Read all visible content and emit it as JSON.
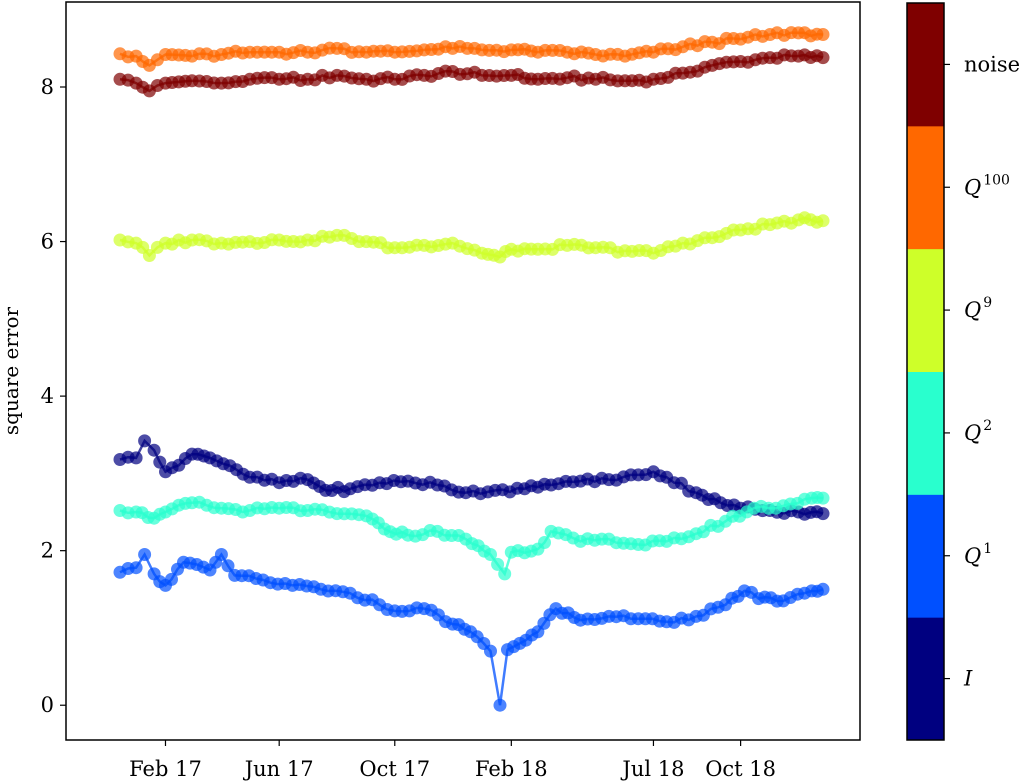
{
  "chart_data": {
    "type": "line",
    "title": "",
    "xlabel": "",
    "ylabel": "square error",
    "ylim": [
      -0.45,
      9.1
    ],
    "xlim": [
      "2016-10-19",
      "2019-02-04"
    ],
    "grid": false,
    "yticks": [
      0,
      2,
      4,
      6,
      8
    ],
    "xticks": [
      {
        "date": "2017-02-01",
        "label": "Feb 17"
      },
      {
        "date": "2017-06-01",
        "label": "Jun 17"
      },
      {
        "date": "2017-10-01",
        "label": "Oct 17"
      },
      {
        "date": "2018-02-01",
        "label": "Feb 18"
      },
      {
        "date": "2018-07-01",
        "label": "Jul 18"
      },
      {
        "date": "2018-10-01",
        "label": "Oct 18"
      }
    ],
    "colorbar": {
      "entries": [
        {
          "label": "I",
          "base": "I",
          "sup": "",
          "color": "#000080"
        },
        {
          "label": "Q^1",
          "base": "Q",
          "sup": "1",
          "color": "#0050ff"
        },
        {
          "label": "Q^2",
          "base": "Q",
          "sup": "2",
          "color": "#29ffce"
        },
        {
          "label": "Q^9",
          "base": "Q",
          "sup": "9",
          "color": "#ceff29"
        },
        {
          "label": "Q^100",
          "base": "Q",
          "sup": "100",
          "color": "#ff6800"
        },
        {
          "label": "noise",
          "base": "noise",
          "sup": "",
          "color": "#7f0000"
        }
      ]
    },
    "series": [
      {
        "key": "noise",
        "color": "#7f0000",
        "points": [
          [
            "2016-12-15",
            8.1
          ],
          [
            "2017-01-01",
            8.05
          ],
          [
            "2017-01-15",
            7.95
          ],
          [
            "2017-02-01",
            8.05
          ],
          [
            "2017-03-01",
            8.08
          ],
          [
            "2017-04-01",
            8.05
          ],
          [
            "2017-05-01",
            8.1
          ],
          [
            "2017-06-01",
            8.1
          ],
          [
            "2017-07-01",
            8.1
          ],
          [
            "2017-08-01",
            8.15
          ],
          [
            "2017-09-01",
            8.1
          ],
          [
            "2017-10-01",
            8.1
          ],
          [
            "2017-11-01",
            8.15
          ],
          [
            "2017-12-01",
            8.2
          ],
          [
            "2018-01-01",
            8.15
          ],
          [
            "2018-02-01",
            8.15
          ],
          [
            "2018-03-01",
            8.1
          ],
          [
            "2018-04-01",
            8.12
          ],
          [
            "2018-05-01",
            8.1
          ],
          [
            "2018-06-01",
            8.08
          ],
          [
            "2018-07-01",
            8.1
          ],
          [
            "2018-08-01",
            8.18
          ],
          [
            "2018-09-01",
            8.28
          ],
          [
            "2018-10-01",
            8.33
          ],
          [
            "2018-11-01",
            8.38
          ],
          [
            "2018-12-01",
            8.4
          ],
          [
            "2018-12-27",
            8.38
          ]
        ]
      },
      {
        "key": "Q^100",
        "color": "#ff6800",
        "points": [
          [
            "2016-12-15",
            8.43
          ],
          [
            "2017-01-01",
            8.4
          ],
          [
            "2017-01-15",
            8.28
          ],
          [
            "2017-02-01",
            8.42
          ],
          [
            "2017-03-01",
            8.4
          ],
          [
            "2017-04-01",
            8.42
          ],
          [
            "2017-05-01",
            8.45
          ],
          [
            "2017-06-01",
            8.45
          ],
          [
            "2017-07-01",
            8.45
          ],
          [
            "2017-08-01",
            8.5
          ],
          [
            "2017-09-01",
            8.45
          ],
          [
            "2017-10-01",
            8.45
          ],
          [
            "2017-11-01",
            8.48
          ],
          [
            "2017-12-01",
            8.5
          ],
          [
            "2018-01-01",
            8.48
          ],
          [
            "2018-02-01",
            8.48
          ],
          [
            "2018-03-01",
            8.45
          ],
          [
            "2018-04-01",
            8.45
          ],
          [
            "2018-05-01",
            8.42
          ],
          [
            "2018-06-01",
            8.4
          ],
          [
            "2018-07-01",
            8.45
          ],
          [
            "2018-08-01",
            8.52
          ],
          [
            "2018-09-01",
            8.58
          ],
          [
            "2018-10-01",
            8.62
          ],
          [
            "2018-11-01",
            8.68
          ],
          [
            "2018-12-01",
            8.7
          ],
          [
            "2018-12-27",
            8.68
          ]
        ]
      },
      {
        "key": "Q^9",
        "color": "#ceff29",
        "points": [
          [
            "2016-12-15",
            6.02
          ],
          [
            "2017-01-01",
            5.98
          ],
          [
            "2017-01-15",
            5.82
          ],
          [
            "2017-02-01",
            5.98
          ],
          [
            "2017-03-01",
            6.02
          ],
          [
            "2017-04-01",
            5.98
          ],
          [
            "2017-05-01",
            6.0
          ],
          [
            "2017-06-01",
            6.02
          ],
          [
            "2017-07-01",
            6.02
          ],
          [
            "2017-08-01",
            6.08
          ],
          [
            "2017-09-01",
            6.0
          ],
          [
            "2017-10-01",
            5.92
          ],
          [
            "2017-11-01",
            5.95
          ],
          [
            "2017-12-01",
            5.98
          ],
          [
            "2018-01-01",
            5.85
          ],
          [
            "2018-01-20",
            5.8
          ],
          [
            "2018-02-01",
            5.9
          ],
          [
            "2018-03-01",
            5.9
          ],
          [
            "2018-04-01",
            5.95
          ],
          [
            "2018-05-01",
            5.92
          ],
          [
            "2018-06-01",
            5.88
          ],
          [
            "2018-07-01",
            5.85
          ],
          [
            "2018-08-01",
            5.98
          ],
          [
            "2018-09-01",
            6.05
          ],
          [
            "2018-10-01",
            6.15
          ],
          [
            "2018-11-01",
            6.22
          ],
          [
            "2018-12-01",
            6.28
          ],
          [
            "2018-12-27",
            6.27
          ]
        ]
      },
      {
        "key": "I",
        "color": "#000080",
        "points": [
          [
            "2016-12-15",
            3.18
          ],
          [
            "2017-01-01",
            3.2
          ],
          [
            "2017-01-10",
            3.42
          ],
          [
            "2017-01-20",
            3.3
          ],
          [
            "2017-02-01",
            3.02
          ],
          [
            "2017-03-01",
            3.25
          ],
          [
            "2017-03-20",
            3.2
          ],
          [
            "2017-04-10",
            3.1
          ],
          [
            "2017-05-01",
            2.95
          ],
          [
            "2017-06-01",
            2.88
          ],
          [
            "2017-07-01",
            2.92
          ],
          [
            "2017-07-20",
            2.78
          ],
          [
            "2017-08-15",
            2.8
          ],
          [
            "2017-09-15",
            2.88
          ],
          [
            "2017-10-15",
            2.9
          ],
          [
            "2017-11-15",
            2.85
          ],
          [
            "2017-12-15",
            2.75
          ],
          [
            "2018-01-15",
            2.78
          ],
          [
            "2018-02-15",
            2.8
          ],
          [
            "2018-03-15",
            2.85
          ],
          [
            "2018-04-15",
            2.9
          ],
          [
            "2018-05-15",
            2.92
          ],
          [
            "2018-06-15",
            2.98
          ],
          [
            "2018-07-01",
            3.02
          ],
          [
            "2018-07-15",
            2.95
          ],
          [
            "2018-08-15",
            2.75
          ],
          [
            "2018-09-10",
            2.62
          ],
          [
            "2018-10-01",
            2.55
          ],
          [
            "2018-11-01",
            2.52
          ],
          [
            "2018-12-01",
            2.5
          ],
          [
            "2018-12-27",
            2.48
          ]
        ]
      },
      {
        "key": "Q^2",
        "color": "#29ffce",
        "points": [
          [
            "2016-12-15",
            2.52
          ],
          [
            "2017-01-01",
            2.5
          ],
          [
            "2017-01-20",
            2.42
          ],
          [
            "2017-02-01",
            2.5
          ],
          [
            "2017-03-01",
            2.62
          ],
          [
            "2017-04-01",
            2.55
          ],
          [
            "2017-05-01",
            2.52
          ],
          [
            "2017-06-01",
            2.55
          ],
          [
            "2017-07-01",
            2.52
          ],
          [
            "2017-08-01",
            2.48
          ],
          [
            "2017-09-01",
            2.45
          ],
          [
            "2017-09-20",
            2.28
          ],
          [
            "2017-10-15",
            2.2
          ],
          [
            "2017-11-15",
            2.25
          ],
          [
            "2017-12-15",
            2.15
          ],
          [
            "2018-01-10",
            1.95
          ],
          [
            "2018-01-25",
            1.7
          ],
          [
            "2018-02-01",
            1.98
          ],
          [
            "2018-03-01",
            2.02
          ],
          [
            "2018-03-15",
            2.25
          ],
          [
            "2018-04-15",
            2.12
          ],
          [
            "2018-05-15",
            2.15
          ],
          [
            "2018-06-15",
            2.08
          ],
          [
            "2018-07-15",
            2.12
          ],
          [
            "2018-08-15",
            2.22
          ],
          [
            "2018-09-15",
            2.38
          ],
          [
            "2018-10-15",
            2.55
          ],
          [
            "2018-11-15",
            2.58
          ],
          [
            "2018-12-15",
            2.68
          ],
          [
            "2018-12-27",
            2.68
          ]
        ]
      },
      {
        "key": "Q^1",
        "color": "#0050ff",
        "points": [
          [
            "2016-12-15",
            1.72
          ],
          [
            "2017-01-01",
            1.78
          ],
          [
            "2017-01-10",
            1.95
          ],
          [
            "2017-01-20",
            1.7
          ],
          [
            "2017-02-01",
            1.55
          ],
          [
            "2017-02-20",
            1.85
          ],
          [
            "2017-03-20",
            1.75
          ],
          [
            "2017-04-01",
            1.95
          ],
          [
            "2017-04-15",
            1.68
          ],
          [
            "2017-05-15",
            1.62
          ],
          [
            "2017-06-15",
            1.55
          ],
          [
            "2017-07-15",
            1.5
          ],
          [
            "2017-08-15",
            1.45
          ],
          [
            "2017-09-15",
            1.3
          ],
          [
            "2017-10-01",
            1.22
          ],
          [
            "2017-11-01",
            1.25
          ],
          [
            "2017-12-01",
            1.05
          ],
          [
            "2017-12-20",
            0.95
          ],
          [
            "2018-01-10",
            0.7
          ],
          [
            "2018-01-20",
            0.0
          ],
          [
            "2018-01-28",
            0.72
          ],
          [
            "2018-02-10",
            0.8
          ],
          [
            "2018-03-01",
            0.95
          ],
          [
            "2018-03-20",
            1.25
          ],
          [
            "2018-04-15",
            1.1
          ],
          [
            "2018-05-15",
            1.15
          ],
          [
            "2018-06-15",
            1.12
          ],
          [
            "2018-07-15",
            1.08
          ],
          [
            "2018-08-15",
            1.15
          ],
          [
            "2018-09-15",
            1.3
          ],
          [
            "2018-10-05",
            1.48
          ],
          [
            "2018-10-20",
            1.38
          ],
          [
            "2018-11-15",
            1.35
          ],
          [
            "2018-12-15",
            1.48
          ],
          [
            "2018-12-27",
            1.5
          ]
        ]
      }
    ]
  }
}
